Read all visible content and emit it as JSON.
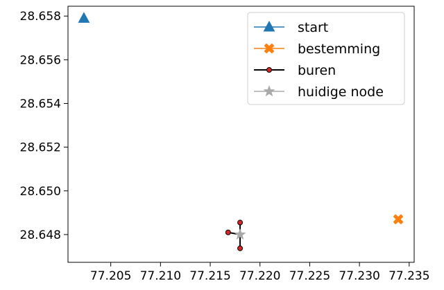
{
  "chart_data": {
    "type": "scatter",
    "xlim": [
      77.2007,
      77.2355
    ],
    "ylim": [
      28.64673,
      28.65845
    ],
    "x_ticks": [
      77.205,
      77.21,
      77.215,
      77.22,
      77.225,
      77.23,
      77.235
    ],
    "x_tick_labels": [
      "77.205",
      "77.210",
      "77.215",
      "77.220",
      "77.225",
      "77.230",
      "77.235"
    ],
    "y_ticks": [
      28.648,
      28.65,
      28.652,
      28.654,
      28.656,
      28.658
    ],
    "y_tick_labels": [
      "28.648",
      "28.650",
      "28.652",
      "28.654",
      "28.656",
      "28.658"
    ],
    "grid": false,
    "legend_position": "top-right",
    "series": [
      {
        "name": "start",
        "marker": "triangle",
        "color": "#1f77b4",
        "points": [
          [
            77.2023,
            28.6579
          ]
        ]
      },
      {
        "name": "bestemming",
        "marker": "x-filled",
        "color": "#ff7f0e",
        "points": [
          [
            77.2339,
            28.6487
          ]
        ]
      },
      {
        "name": "buren",
        "marker": "circle",
        "color": "#000000",
        "marker_fill": "#d62728",
        "center": [
          77.218,
          28.648
        ],
        "points": [
          [
            77.2168,
            28.6481
          ],
          [
            77.218,
            28.64855
          ],
          [
            77.218,
            28.64737
          ]
        ]
      },
      {
        "name": "huidige node",
        "marker": "star",
        "color": "#aaaaaa",
        "points": [
          [
            77.218,
            28.648
          ]
        ]
      }
    ]
  }
}
